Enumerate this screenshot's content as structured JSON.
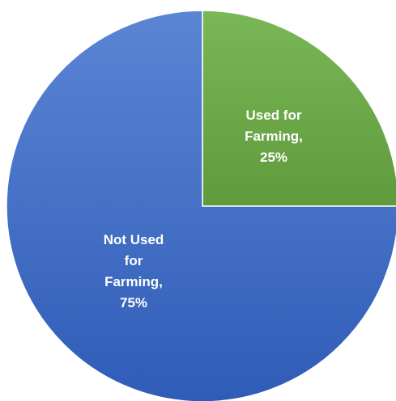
{
  "chart_data": {
    "type": "pie",
    "title": "",
    "start_angle_deg": 0,
    "direction": "clockwise",
    "slices": [
      {
        "category": "Used for Farming",
        "value": 25,
        "percent_label": "25%",
        "label_lines": [
          "Used for",
          "Farming,",
          "25%"
        ],
        "color_top": "#7ab756",
        "color_bottom": "#5f9b3c"
      },
      {
        "category": "Not Used for Farming",
        "value": 75,
        "percent_label": "75%",
        "label_lines": [
          "Not Used",
          "for",
          "Farming,",
          "75%"
        ],
        "color_top": "#5b85d4",
        "color_bottom": "#2f5cb7"
      }
    ],
    "legend": "none",
    "data_labels": "inside"
  }
}
